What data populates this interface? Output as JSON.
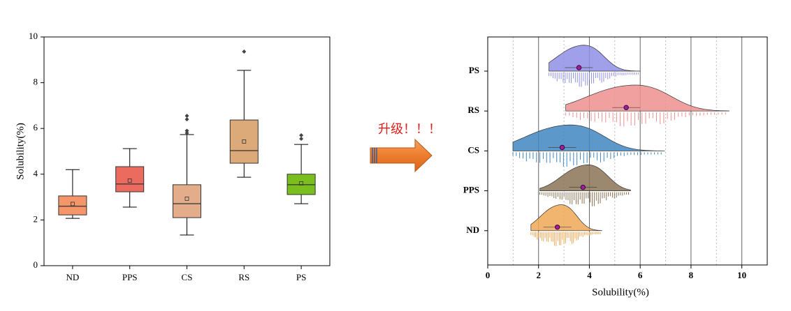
{
  "annotation": "升级！！！",
  "chart_data": [
    {
      "type": "box",
      "ylabel": "Solubility(%)",
      "ylim": [
        0,
        10
      ],
      "yticks": [
        0,
        2,
        4,
        6,
        8,
        10
      ],
      "categories": [
        "ND",
        "PPS",
        "CS",
        "RS",
        "PS"
      ],
      "boxes": [
        {
          "min": 2.07,
          "q1": 2.22,
          "median": 2.6,
          "q3": 3.05,
          "max": 4.2,
          "mean": 2.7,
          "outliers": [],
          "color": "#f4956a"
        },
        {
          "min": 2.56,
          "q1": 3.23,
          "median": 3.57,
          "q3": 4.33,
          "max": 5.12,
          "mean": 3.72,
          "outliers": [],
          "color": "#ec6b5f"
        },
        {
          "min": 1.34,
          "q1": 2.1,
          "median": 2.71,
          "q3": 3.54,
          "max": 5.73,
          "mean": 2.93,
          "outliers": [
            5.8,
            5.9,
            6.4,
            6.55
          ],
          "color": "#e3ad8c"
        },
        {
          "min": 3.87,
          "q1": 4.48,
          "median": 5.03,
          "q3": 6.37,
          "max": 8.54,
          "mean": 5.43,
          "outliers": [
            9.36
          ],
          "color": "#dbaa78"
        },
        {
          "min": 2.71,
          "q1": 3.11,
          "median": 3.54,
          "q3": 4.0,
          "max": 5.3,
          "mean": 3.6,
          "outliers": [
            5.55,
            5.7
          ],
          "color": "#7bbf1f"
        }
      ]
    },
    {
      "type": "raincloud",
      "xlabel": "Solubility(%)",
      "xlim": [
        0,
        11
      ],
      "xticks": [
        0,
        2,
        4,
        6,
        8,
        10
      ],
      "minor_xticks": [
        1,
        3,
        5,
        7,
        9
      ],
      "categories": [
        "PS",
        "RS",
        "CS",
        "PPS",
        "ND"
      ],
      "groups": [
        {
          "min": 2.41,
          "max": 6.0,
          "mean": 3.59,
          "color": "#8f8fe6"
        },
        {
          "min": 3.07,
          "max": 9.5,
          "mean": 5.45,
          "color": "#ee8f8f"
        },
        {
          "min": 0.99,
          "max": 6.96,
          "mean": 2.93,
          "color": "#3f86c0"
        },
        {
          "min": 2.05,
          "max": 5.62,
          "mean": 3.75,
          "color": "#8b7355"
        },
        {
          "min": 1.7,
          "max": 4.49,
          "mean": 2.74,
          "color": "#f0a856"
        }
      ]
    }
  ]
}
